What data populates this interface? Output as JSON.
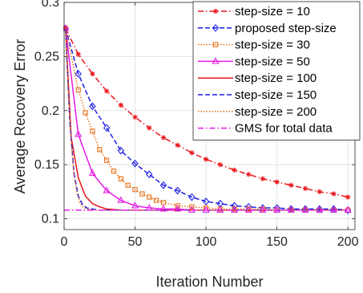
{
  "chart_data": {
    "type": "line",
    "xlabel": "Iteration Number",
    "ylabel": "Average Recovery Error",
    "xlim": [
      0,
      205
    ],
    "ylim": [
      0.09,
      0.3
    ],
    "xticks": [
      0,
      50,
      100,
      150,
      200
    ],
    "yticks": [
      0.1,
      0.15,
      0.2,
      0.25,
      0.3
    ],
    "xtick_labels": [
      "0",
      "50",
      "100",
      "150",
      "200"
    ],
    "ytick_labels": [
      "0.1",
      "0.15",
      "0.2",
      "0.25",
      "0.3"
    ],
    "grid": true,
    "legend_position": "top-right",
    "series": [
      {
        "name": "step-size = 10",
        "color": "#e8171e",
        "line": "dashdot",
        "marker": "asterisk",
        "x": [
          1,
          10,
          20,
          30,
          40,
          50,
          60,
          70,
          80,
          90,
          100,
          110,
          120,
          130,
          140,
          150,
          160,
          170,
          180,
          190,
          200
        ],
        "y": [
          0.276,
          0.252,
          0.234,
          0.218,
          0.205,
          0.194,
          0.184,
          0.175,
          0.168,
          0.161,
          0.155,
          0.15,
          0.145,
          0.141,
          0.137,
          0.134,
          0.131,
          0.128,
          0.125,
          0.123,
          0.12
        ]
      },
      {
        "name": "proposed step-size",
        "color": "#1f1fe6",
        "line": "dashed",
        "marker": "diamond",
        "x": [
          1,
          10,
          20,
          30,
          40,
          50,
          60,
          70,
          80,
          90,
          100,
          110,
          120,
          130,
          140,
          150,
          160,
          170,
          180,
          190,
          200
        ],
        "y": [
          0.276,
          0.234,
          0.204,
          0.184,
          0.163,
          0.151,
          0.141,
          0.131,
          0.126,
          0.12,
          0.116,
          0.114,
          0.112,
          0.111,
          0.11,
          0.11,
          0.109,
          0.109,
          0.109,
          0.109,
          0.108
        ]
      },
      {
        "name": "step-size = 30",
        "color": "#e8731e",
        "line": "dotted",
        "marker": "square",
        "x": [
          1,
          10,
          15,
          20,
          25,
          30,
          35,
          40,
          45,
          50,
          55,
          60,
          65,
          70,
          80,
          90,
          100,
          110,
          120,
          130,
          140,
          150,
          160,
          170,
          180,
          190,
          200
        ],
        "y": [
          0.276,
          0.219,
          0.198,
          0.181,
          0.164,
          0.154,
          0.144,
          0.137,
          0.131,
          0.127,
          0.123,
          0.12,
          0.117,
          0.115,
          0.112,
          0.111,
          0.11,
          0.109,
          0.109,
          0.109,
          0.109,
          0.108,
          0.108,
          0.108,
          0.108,
          0.108,
          0.108
        ]
      },
      {
        "name": "step-size = 50",
        "color": "#e619e6",
        "line": "solid",
        "marker": "triangle",
        "x": [
          1,
          10,
          20,
          30,
          40,
          50,
          60,
          70,
          80,
          90,
          100,
          110,
          120,
          130,
          140,
          150,
          160,
          170,
          180,
          190,
          200
        ],
        "y": [
          0.276,
          0.178,
          0.142,
          0.126,
          0.117,
          0.112,
          0.11,
          0.109,
          0.109,
          0.108,
          0.108,
          0.108,
          0.108,
          0.108,
          0.108,
          0.108,
          0.108,
          0.108,
          0.108,
          0.108,
          0.108
        ]
      },
      {
        "name": "step-size = 100",
        "color": "#e6151b",
        "line": "solid",
        "marker": "none",
        "x": [
          1,
          5,
          10,
          15,
          20,
          25,
          30,
          40,
          50,
          75,
          100,
          150,
          200
        ],
        "y": [
          0.276,
          0.175,
          0.138,
          0.121,
          0.114,
          0.111,
          0.109,
          0.108,
          0.108,
          0.108,
          0.108,
          0.108,
          0.108
        ]
      },
      {
        "name": "step-size = 150",
        "color": "#1f1fe6",
        "line": "dashed",
        "marker": "none",
        "x": [
          1,
          4,
          7,
          10,
          13,
          16,
          20,
          25,
          30,
          50,
          100,
          150,
          200
        ],
        "y": [
          0.276,
          0.19,
          0.142,
          0.121,
          0.113,
          0.11,
          0.109,
          0.108,
          0.108,
          0.108,
          0.108,
          0.108,
          0.108
        ]
      },
      {
        "name": "step-size = 200",
        "color": "#e8731e",
        "line": "dotted",
        "marker": "none",
        "x": [
          1,
          3,
          5,
          7,
          9,
          11,
          13,
          16,
          20,
          30,
          50,
          100,
          150,
          200
        ],
        "y": [
          0.276,
          0.215,
          0.17,
          0.14,
          0.124,
          0.115,
          0.111,
          0.109,
          0.108,
          0.108,
          0.108,
          0.108,
          0.108,
          0.108
        ]
      },
      {
        "name": "GMS for total data",
        "color": "#e619e6",
        "line": "dashdot",
        "marker": "none",
        "x": [
          0,
          200
        ],
        "y": [
          0.108,
          0.108
        ]
      }
    ]
  }
}
